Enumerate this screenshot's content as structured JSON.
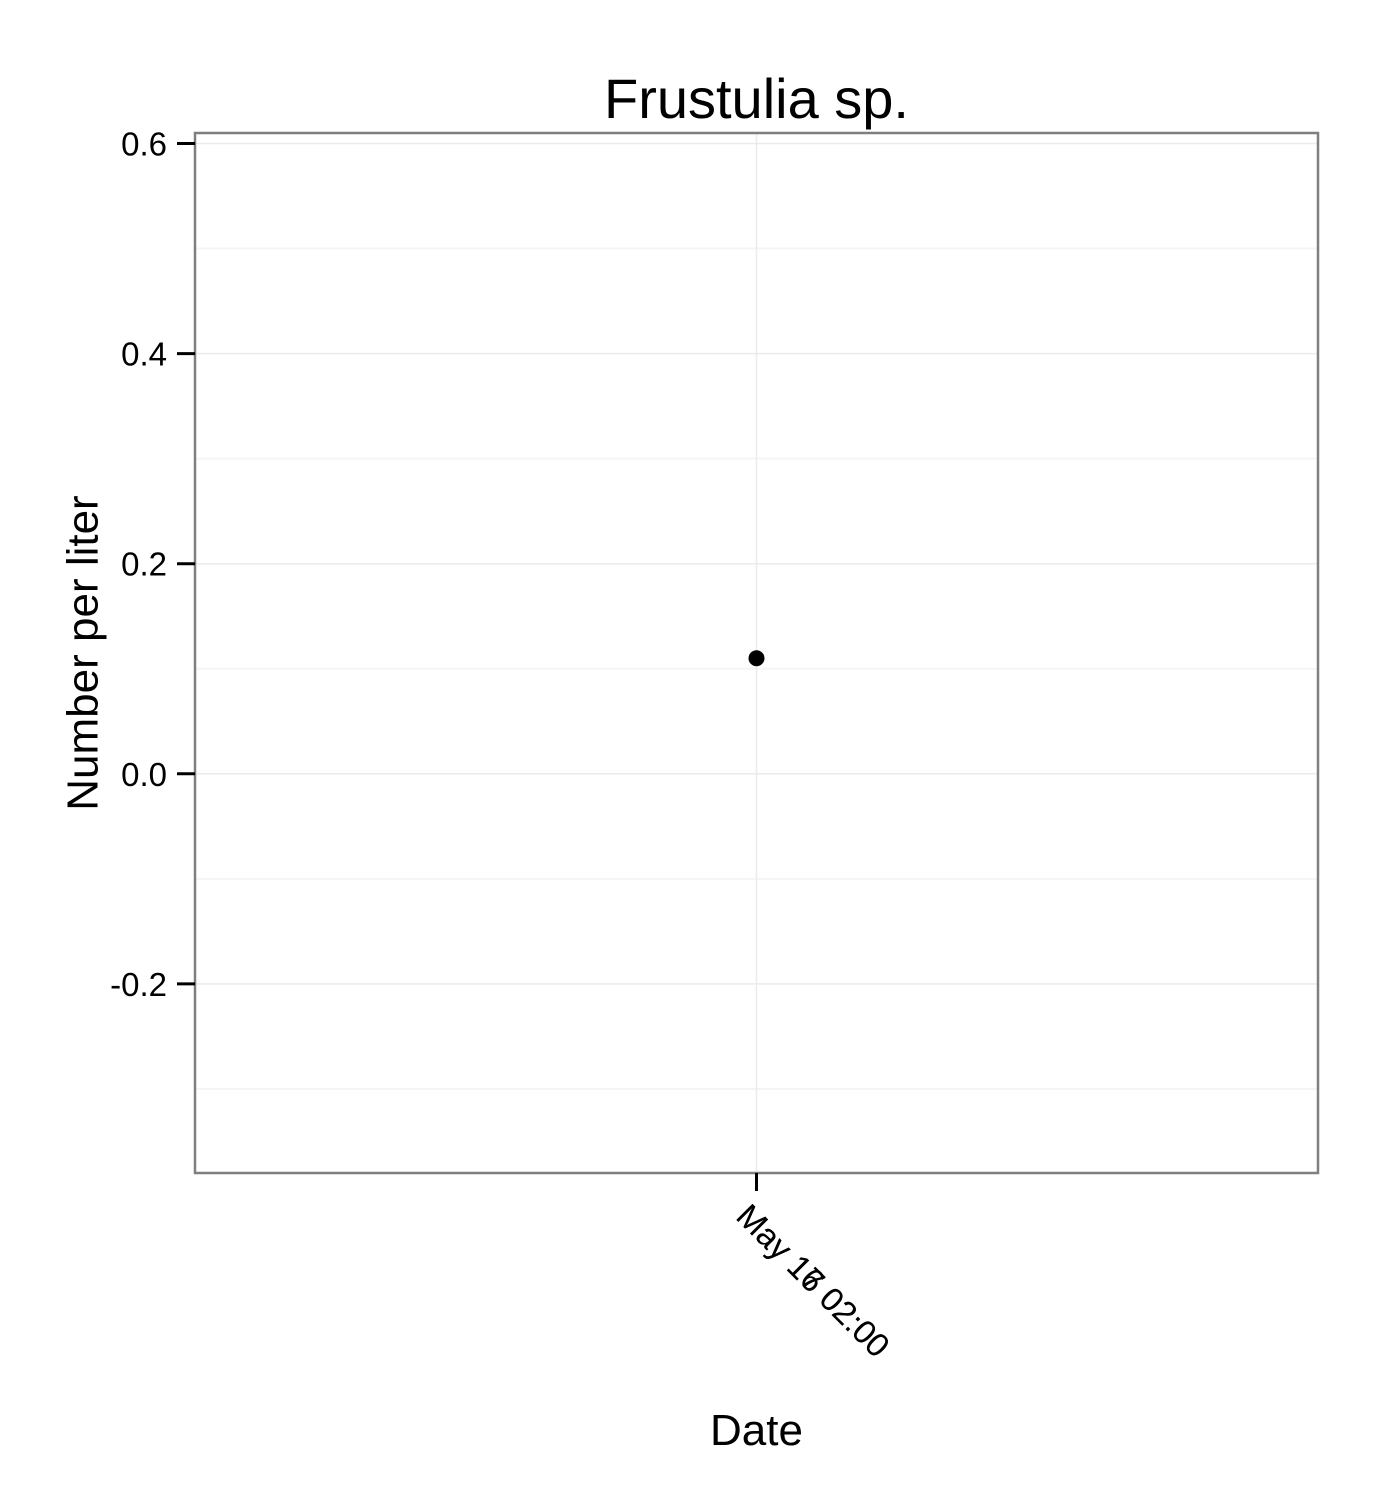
{
  "chart_data": {
    "type": "scatter",
    "title": "Frustulia sp.",
    "xlabel": "Date",
    "ylabel": "Number per liter",
    "ylim": [
      -0.38,
      0.61
    ],
    "yticks": [
      -0.2,
      0.0,
      0.2,
      0.4,
      0.6
    ],
    "ytick_labels": [
      "-0.2",
      "0.0",
      "0.2",
      "0.4",
      "0.6"
    ],
    "xtick_labels": [
      "May 16 02:00",
      "May 17 02:00"
    ],
    "x_tick_label_rotation": "-45 degrees, overlapping",
    "grid": true,
    "panel_border": true,
    "points": [
      {
        "x": "May 16 02:00",
        "y": 0.11
      }
    ],
    "colors": {
      "point": "#000000",
      "grid_major": "#ebebeb",
      "grid_minor": "#f5f5f5",
      "panel_border": "#7f7f7f"
    }
  }
}
